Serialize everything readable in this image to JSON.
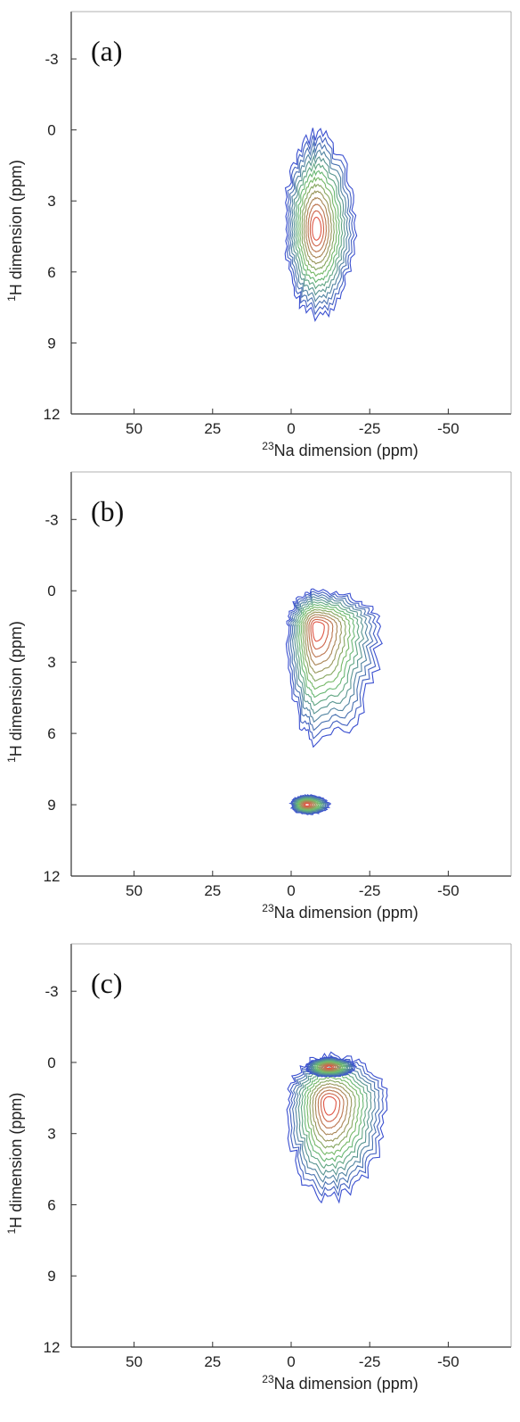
{
  "chart_data": [
    {
      "type": "contour",
      "panel_label": "(a)",
      "xlabel_sup": "23",
      "xlabel": "Na dimension (ppm)",
      "ylabel_sup": "1",
      "ylabel": "H dimension (ppm)",
      "xlim": [
        70,
        -70
      ],
      "ylim": [
        -5,
        12
      ],
      "xticks": [
        50,
        25,
        0,
        -25,
        -50
      ],
      "xtick_labels": [
        "50",
        "25",
        "0",
        "-25",
        "-50"
      ],
      "yticks": [
        -3,
        0,
        3,
        6,
        9,
        12
      ],
      "ytick_labels": [
        "-3",
        "0",
        "3",
        "6",
        "9",
        "12"
      ],
      "peaks": [
        {
          "x": -8,
          "y": 4.2,
          "x_extent": [
            2,
            -20
          ],
          "y_extent": [
            0.2,
            7.8
          ]
        }
      ]
    },
    {
      "type": "contour",
      "panel_label": "(b)",
      "xlabel_sup": "23",
      "xlabel": "Na dimension (ppm)",
      "ylabel_sup": "1",
      "ylabel": "H dimension (ppm)",
      "xlim": [
        70,
        -70
      ],
      "ylim": [
        -5,
        12
      ],
      "xticks": [
        50,
        25,
        0,
        -25,
        -50
      ],
      "xtick_labels": [
        "50",
        "25",
        "0",
        "-25",
        "-50"
      ],
      "yticks": [
        -3,
        0,
        3,
        6,
        9,
        12
      ],
      "ytick_labels": [
        "-3",
        "0",
        "3",
        "6",
        "9",
        "12"
      ],
      "peaks": [
        {
          "x": -8,
          "y": 1.5,
          "x_extent": [
            1,
            -28
          ],
          "y_extent": [
            0.0,
            6.4
          ]
        },
        {
          "x": -5,
          "y": 9.0,
          "x_extent": [
            0,
            -12
          ],
          "y_extent": [
            8.6,
            9.4
          ]
        }
      ]
    },
    {
      "type": "contour",
      "panel_label": "(c)",
      "xlabel_sup": "23",
      "xlabel": "Na dimension (ppm)",
      "ylabel_sup": "1",
      "ylabel": "H dimension (ppm)",
      "xlim": [
        70,
        -70
      ],
      "ylim": [
        -5,
        12
      ],
      "xticks": [
        50,
        25,
        0,
        -25,
        -50
      ],
      "xtick_labels": [
        "50",
        "25",
        "0",
        "-25",
        "-50"
      ],
      "yticks": [
        -3,
        0,
        3,
        6,
        9,
        12
      ],
      "ytick_labels": [
        "-3",
        "0",
        "3",
        "6",
        "9",
        "12"
      ],
      "peaks": [
        {
          "x": -12,
          "y": 1.7,
          "x_extent": [
            1,
            -30
          ],
          "y_extent": [
            -0.3,
            5.8
          ]
        },
        {
          "x": -12,
          "y": 0.2,
          "x_extent": [
            -5,
            -20
          ],
          "y_extent": [
            -0.2,
            0.6
          ]
        }
      ]
    }
  ],
  "colors": {
    "outer_contour": "#3a4fd0",
    "mid_contour": "#6cc06a",
    "inner_contour": "#e05545",
    "axis": "#333333"
  }
}
